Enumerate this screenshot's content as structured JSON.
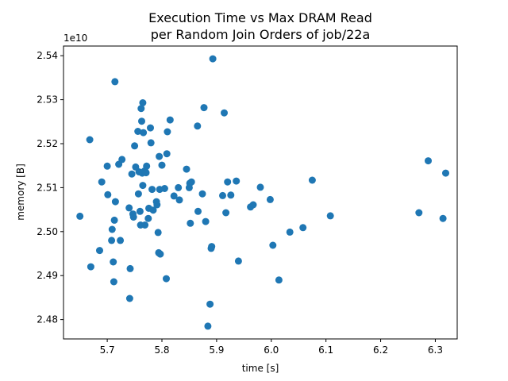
{
  "chart_data": {
    "type": "scatter",
    "title_lines": [
      "Execution Time vs Max DRAM Read",
      "per Random Join Orders of job/22a"
    ],
    "xlabel": "time [s]",
    "ylabel": "memory [B]",
    "y_offset_label": "1e10",
    "xlim": [
      5.62,
      6.34
    ],
    "ylim": [
      2.4756,
      2.5422
    ],
    "x_ticks": [
      5.7,
      5.8,
      5.9,
      6.0,
      6.1,
      6.2,
      6.3
    ],
    "x_tick_labels": [
      "5.7",
      "5.8",
      "5.9",
      "6.0",
      "6.1",
      "6.2",
      "6.3"
    ],
    "y_ticks": [
      2.48,
      2.49,
      2.5,
      2.51,
      2.52,
      2.53,
      2.54
    ],
    "y_tick_labels": [
      "2.48",
      "2.49",
      "2.50",
      "2.51",
      "2.52",
      "2.53",
      "2.54"
    ],
    "marker_color": "#1f77b4",
    "grid": false,
    "points": [
      [
        5.65,
        2.5035
      ],
      [
        5.668,
        2.5209
      ],
      [
        5.67,
        2.492
      ],
      [
        5.686,
        2.4957
      ],
      [
        5.69,
        2.5113
      ],
      [
        5.7,
        2.5149
      ],
      [
        5.701,
        2.5084
      ],
      [
        5.708,
        2.498
      ],
      [
        5.709,
        2.5005
      ],
      [
        5.711,
        2.4931
      ],
      [
        5.712,
        2.4886
      ],
      [
        5.713,
        2.5026
      ],
      [
        5.714,
        2.5341
      ],
      [
        5.715,
        2.5068
      ],
      [
        5.721,
        2.5153
      ],
      [
        5.724,
        2.498
      ],
      [
        5.727,
        2.5164
      ],
      [
        5.74,
        2.5054
      ],
      [
        5.741,
        2.4848
      ],
      [
        5.742,
        2.4916
      ],
      [
        5.745,
        2.5131
      ],
      [
        5.747,
        2.504
      ],
      [
        5.748,
        2.5033
      ],
      [
        5.75,
        2.5195
      ],
      [
        5.752,
        2.5147
      ],
      [
        5.756,
        2.5228
      ],
      [
        5.757,
        2.5086
      ],
      [
        5.758,
        2.5136
      ],
      [
        5.76,
        2.5046
      ],
      [
        5.761,
        2.5015
      ],
      [
        5.762,
        2.528
      ],
      [
        5.763,
        2.5251
      ],
      [
        5.764,
        2.5133
      ],
      [
        5.765,
        2.5105
      ],
      [
        5.765,
        2.5293
      ],
      [
        5.766,
        2.5225
      ],
      [
        5.768,
        2.5138
      ],
      [
        5.769,
        2.5015
      ],
      [
        5.77,
        2.5136
      ],
      [
        5.771,
        2.5134
      ],
      [
        5.772,
        2.5149
      ],
      [
        5.775,
        2.503
      ],
      [
        5.776,
        2.5053
      ],
      [
        5.779,
        2.5236
      ],
      [
        5.78,
        2.5202
      ],
      [
        5.782,
        2.5096
      ],
      [
        5.784,
        2.5049
      ],
      [
        5.79,
        2.5068
      ],
      [
        5.791,
        2.5061
      ],
      [
        5.793,
        2.4998
      ],
      [
        5.794,
        2.4952
      ],
      [
        5.795,
        2.5171
      ],
      [
        5.796,
        2.5096
      ],
      [
        5.797,
        2.4949
      ],
      [
        5.8,
        2.5151
      ],
      [
        5.805,
        2.5098
      ],
      [
        5.808,
        2.4893
      ],
      [
        5.809,
        2.5177
      ],
      [
        5.81,
        2.5227
      ],
      [
        5.815,
        2.5254
      ],
      [
        5.822,
        2.5081
      ],
      [
        5.83,
        2.51
      ],
      [
        5.832,
        2.5072
      ],
      [
        5.845,
        2.5142
      ],
      [
        5.85,
        2.51
      ],
      [
        5.851,
        2.511
      ],
      [
        5.852,
        2.5019
      ],
      [
        5.854,
        2.5113
      ],
      [
        5.865,
        2.524
      ],
      [
        5.866,
        2.5046
      ],
      [
        5.874,
        2.5086
      ],
      [
        5.877,
        2.5282
      ],
      [
        5.88,
        2.5023
      ],
      [
        5.884,
        2.4785
      ],
      [
        5.888,
        2.4835
      ],
      [
        5.89,
        2.4962
      ],
      [
        5.891,
        2.4966
      ],
      [
        5.893,
        2.5393
      ],
      [
        5.911,
        2.5082
      ],
      [
        5.914,
        2.527
      ],
      [
        5.917,
        2.5043
      ],
      [
        5.92,
        2.5113
      ],
      [
        5.926,
        2.5083
      ],
      [
        5.936,
        2.5115
      ],
      [
        5.94,
        2.4933
      ],
      [
        5.962,
        2.5056
      ],
      [
        5.967,
        2.5061
      ],
      [
        5.98,
        2.5101
      ],
      [
        5.998,
        2.5073
      ],
      [
        6.003,
        2.4969
      ],
      [
        6.014,
        2.489
      ],
      [
        6.034,
        2.4999
      ],
      [
        6.058,
        2.5009
      ],
      [
        6.075,
        2.5117
      ],
      [
        6.108,
        2.5036
      ],
      [
        6.27,
        2.5043
      ],
      [
        6.287,
        2.5161
      ],
      [
        6.314,
        2.503
      ],
      [
        6.319,
        2.5133
      ]
    ]
  }
}
